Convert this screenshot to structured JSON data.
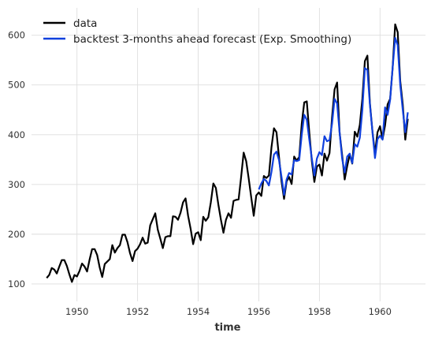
{
  "chart_data": {
    "type": "line",
    "title": "",
    "xlabel": "time",
    "ylabel": "",
    "xlim": [
      1948.5,
      1961.5
    ],
    "ylim": [
      65,
      655
    ],
    "x_ticks": [
      1950,
      1952,
      1954,
      1956,
      1958,
      1960
    ],
    "y_ticks": [
      100,
      200,
      300,
      400,
      500,
      600
    ],
    "x_tick_labels": [
      "1950",
      "1952",
      "1954",
      "1956",
      "1958",
      "1960"
    ],
    "y_tick_labels": [
      "100",
      "200",
      "300",
      "400",
      "500",
      "600"
    ],
    "grid": true,
    "legend_position": "upper-left",
    "colors": {
      "data": "#000000",
      "forecast": "#1040dd",
      "grid": "#dedede",
      "text": "#333333"
    },
    "series": [
      {
        "name": "data",
        "x_start": 1949.0,
        "step": 0.08333333,
        "values": [
          112,
          118,
          132,
          129,
          121,
          135,
          148,
          148,
          136,
          119,
          104,
          118,
          115,
          126,
          141,
          135,
          125,
          149,
          170,
          170,
          158,
          133,
          114,
          140,
          145,
          150,
          178,
          163,
          172,
          178,
          199,
          199,
          184,
          162,
          146,
          166,
          171,
          180,
          193,
          181,
          183,
          218,
          230,
          242,
          209,
          191,
          172,
          194,
          196,
          196,
          236,
          235,
          229,
          243,
          264,
          272,
          237,
          211,
          180,
          201,
          204,
          188,
          235,
          227,
          234,
          264,
          302,
          293,
          259,
          229,
          203,
          229,
          242,
          233,
          267,
          269,
          270,
          315,
          364,
          347,
          312,
          274,
          237,
          278,
          284,
          277,
          317,
          313,
          318,
          374,
          413,
          405,
          355,
          306,
          271,
          306,
          315,
          301,
          356,
          348,
          355,
          422,
          465,
          467,
          404,
          347,
          305,
          336,
          340,
          318,
          362,
          348,
          363,
          435,
          491,
          505,
          404,
          359,
          310,
          337,
          360,
          342,
          406,
          396,
          420,
          472,
          548,
          559,
          463,
          407,
          362,
          405,
          417,
          391,
          419,
          461,
          472,
          535,
          622,
          606,
          508,
          461,
          390,
          432
        ]
      },
      {
        "name": "backtest 3-months ahead forecast (Exp. Smoothing)",
        "x_start": 1956.0,
        "step": 0.08333333,
        "values": [
          290,
          302,
          311,
          307,
          298,
          325,
          360,
          366,
          349,
          315,
          279,
          310,
          323,
          320,
          349,
          347,
          349,
          400,
          440,
          430,
          390,
          352,
          318,
          352,
          365,
          359,
          397,
          387,
          389,
          422,
          472,
          463,
          404,
          352,
          324,
          356,
          362,
          343,
          381,
          376,
          394,
          450,
          534,
          530,
          460,
          406,
          353,
          391,
          398,
          390,
          455,
          440,
          470,
          535,
          595,
          580,
          500,
          450,
          405,
          445
        ]
      }
    ]
  }
}
